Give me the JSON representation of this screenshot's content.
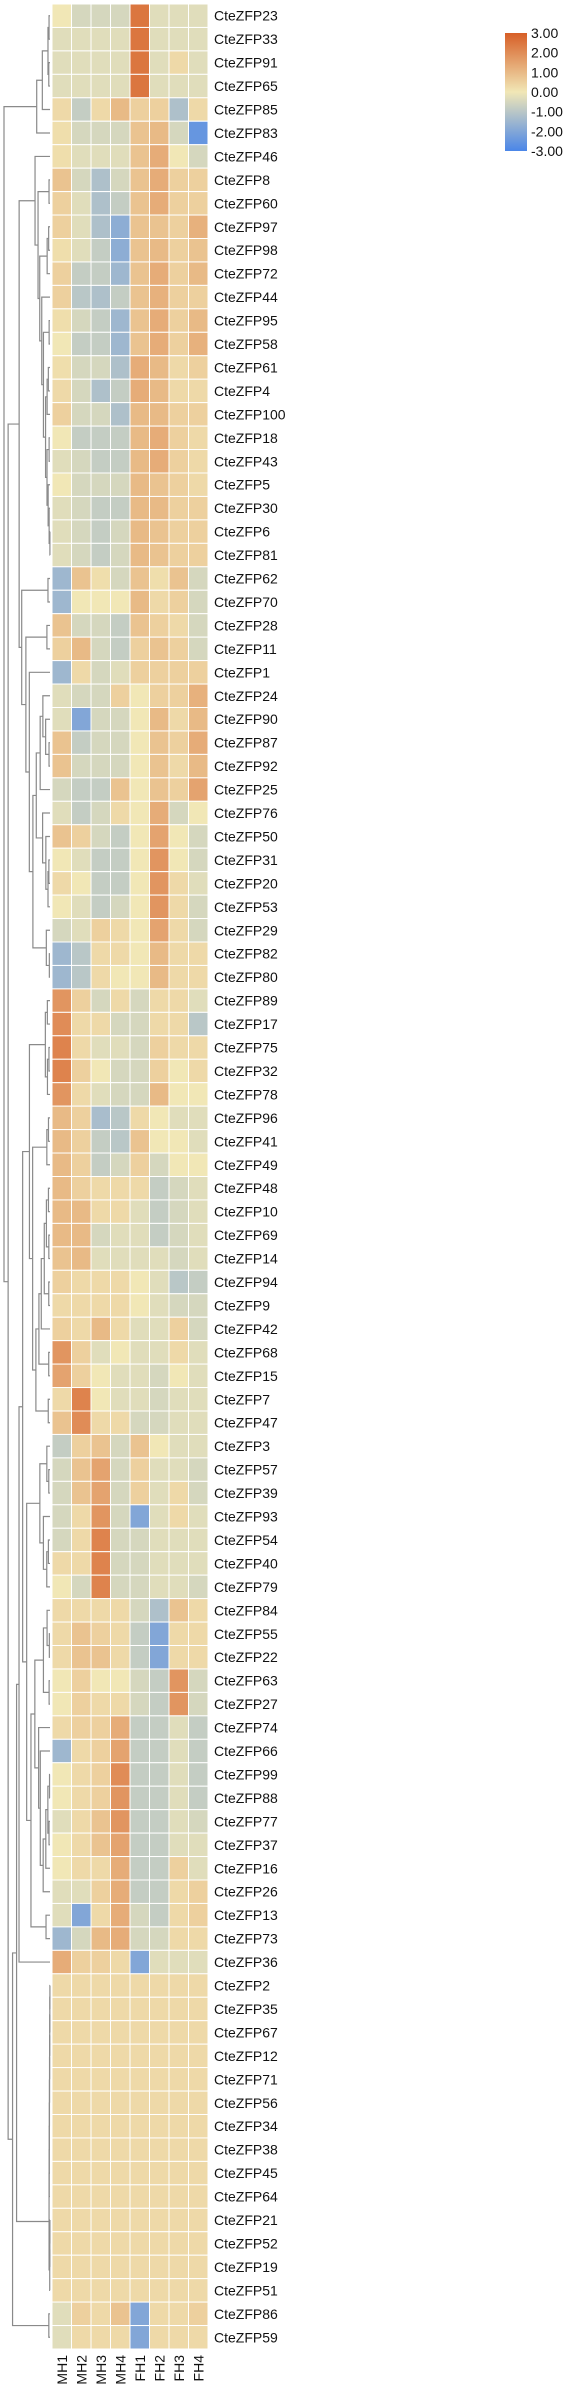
{
  "chart_data": {
    "type": "heatmap",
    "columns": [
      "MH1",
      "MH2",
      "MH3",
      "MH4",
      "FH1",
      "FH2",
      "FH3",
      "FH4"
    ],
    "rows": [
      "CteZFP23",
      "CteZFP33",
      "CteZFP91",
      "CteZFP65",
      "CteZFP85",
      "CteZFP83",
      "CteZFP46",
      "CteZFP8",
      "CteZFP60",
      "CteZFP97",
      "CteZFP98",
      "CteZFP72",
      "CteZFP44",
      "CteZFP95",
      "CteZFP58",
      "CteZFP61",
      "CteZFP4",
      "CteZFP100",
      "CteZFP18",
      "CteZFP43",
      "CteZFP5",
      "CteZFP30",
      "CteZFP6",
      "CteZFP81",
      "CteZFP62",
      "CteZFP70",
      "CteZFP28",
      "CteZFP11",
      "CteZFP1",
      "CteZFP24",
      "CteZFP90",
      "CteZFP87",
      "CteZFP92",
      "CteZFP25",
      "CteZFP76",
      "CteZFP50",
      "CteZFP31",
      "CteZFP20",
      "CteZFP53",
      "CteZFP29",
      "CteZFP82",
      "CteZFP80",
      "CteZFP89",
      "CteZFP17",
      "CteZFP75",
      "CteZFP32",
      "CteZFP78",
      "CteZFP96",
      "CteZFP41",
      "CteZFP49",
      "CteZFP48",
      "CteZFP10",
      "CteZFP69",
      "CteZFP14",
      "CteZFP94",
      "CteZFP9",
      "CteZFP42",
      "CteZFP68",
      "CteZFP15",
      "CteZFP7",
      "CteZFP47",
      "CteZFP3",
      "CteZFP57",
      "CteZFP39",
      "CteZFP93",
      "CteZFP54",
      "CteZFP40",
      "CteZFP79",
      "CteZFP84",
      "CteZFP55",
      "CteZFP22",
      "CteZFP63",
      "CteZFP27",
      "CteZFP74",
      "CteZFP66",
      "CteZFP99",
      "CteZFP88",
      "CteZFP77",
      "CteZFP37",
      "CteZFP16",
      "CteZFP26",
      "CteZFP13",
      "CteZFP73",
      "CteZFP36",
      "CteZFP2",
      "CteZFP35",
      "CteZFP67",
      "CteZFP12",
      "CteZFP71",
      "CteZFP56",
      "CteZFP34",
      "CteZFP38",
      "CteZFP45",
      "CteZFP64",
      "CteZFP21",
      "CteZFP52",
      "CteZFP19",
      "CteZFP51",
      "CteZFP86",
      "CteZFP59"
    ],
    "values": [
      [
        0,
        -0.5,
        -0.5,
        -0.5,
        2.5,
        -0.3,
        -0.3,
        -0.3
      ],
      [
        -0.3,
        -0.3,
        -0.3,
        -0.3,
        2.5,
        -0.3,
        -0.3,
        -0.3
      ],
      [
        -0.3,
        -0.3,
        -0.3,
        -0.3,
        2.5,
        -0.3,
        0.3,
        -0.3
      ],
      [
        -0.3,
        -0.3,
        -0.3,
        -0.3,
        2.5,
        -0.3,
        -0.3,
        -0.3
      ],
      [
        0.3,
        -0.8,
        0.3,
        1.0,
        0.5,
        0.5,
        -1.2,
        0.3
      ],
      [
        0.2,
        -0.5,
        -0.5,
        -0.5,
        0.8,
        1.0,
        -0.5,
        -2.5
      ],
      [
        0.2,
        -0.3,
        -0.3,
        -0.3,
        0.8,
        1.3,
        0,
        -0.5
      ],
      [
        0.8,
        -0.5,
        -1.2,
        -0.5,
        0.8,
        1.3,
        0.5,
        0.5
      ],
      [
        0.5,
        -0.3,
        -1.2,
        -0.8,
        0.8,
        1.3,
        0.5,
        0.5
      ],
      [
        0.5,
        -0.3,
        -1.2,
        -1.8,
        0.8,
        0.8,
        0.5,
        1.2
      ],
      [
        0.2,
        -0.3,
        -0.8,
        -1.8,
        0.8,
        1.0,
        0.5,
        0.8
      ],
      [
        0.5,
        -0.8,
        -0.8,
        -1.5,
        0.8,
        1.3,
        0.5,
        1.0
      ],
      [
        0.5,
        -1.0,
        -1.2,
        -0.8,
        0.8,
        1.2,
        0.5,
        0.5
      ],
      [
        0.2,
        -0.5,
        -0.8,
        -1.5,
        0.8,
        1.3,
        0.5,
        1.0
      ],
      [
        0,
        -0.8,
        -0.8,
        -1.5,
        0.8,
        1.3,
        0.5,
        1.2
      ],
      [
        0.2,
        -0.5,
        -0.5,
        -1.2,
        1.3,
        1.0,
        0.3,
        0.5
      ],
      [
        0.3,
        -0.5,
        -1.2,
        -0.8,
        1.3,
        1.0,
        0.3,
        0.3
      ],
      [
        0.5,
        -0.5,
        -0.5,
        -1.2,
        1.0,
        1.0,
        0.5,
        0.5
      ],
      [
        0,
        -0.8,
        -0.8,
        -0.8,
        1.0,
        1.3,
        0.5,
        0.3
      ],
      [
        -0.3,
        -0.5,
        -0.8,
        -0.8,
        1.0,
        1.3,
        0.5,
        0.3
      ],
      [
        0,
        -0.5,
        -0.5,
        -0.5,
        1.0,
        0.8,
        0.5,
        0.3
      ],
      [
        -0.3,
        -0.5,
        -0.8,
        -0.8,
        1.0,
        1.0,
        0.5,
        0.5
      ],
      [
        -0.3,
        -0.5,
        -0.8,
        -0.5,
        1.0,
        0.8,
        0.5,
        0.5
      ],
      [
        -0.3,
        -0.5,
        -0.8,
        -0.5,
        1.0,
        0.8,
        0.5,
        0.5
      ],
      [
        -1.5,
        0.8,
        0.2,
        -0.5,
        0.8,
        0.2,
        0.8,
        -0.5
      ],
      [
        -1.5,
        0,
        0,
        0,
        1.0,
        0.3,
        0.5,
        -0.5
      ],
      [
        0.8,
        -0.5,
        -0.5,
        -0.8,
        0.8,
        0.5,
        0.3,
        -0.5
      ],
      [
        0.5,
        1.0,
        -0.5,
        -0.8,
        0.5,
        0.8,
        0.5,
        -0.5
      ],
      [
        -1.5,
        0.3,
        -0.5,
        -0.3,
        0.5,
        0.5,
        0.5,
        0.5
      ],
      [
        -0.3,
        -0.5,
        -0.5,
        0.5,
        0,
        0.5,
        0.5,
        1.2
      ],
      [
        -0.3,
        -2.0,
        -0.5,
        -0.5,
        0,
        1.0,
        0.3,
        1.0
      ],
      [
        0.8,
        -0.8,
        -0.5,
        -0.5,
        0,
        0.8,
        0.5,
        1.3
      ],
      [
        0.8,
        -0.5,
        -0.5,
        -0.5,
        0,
        0.8,
        0.3,
        1.0
      ],
      [
        -0.5,
        -0.8,
        -0.8,
        0.8,
        0,
        0.8,
        0.5,
        1.5
      ],
      [
        -0.3,
        -0.8,
        -0.5,
        0.3,
        0,
        1.3,
        -0.5,
        0
      ],
      [
        0.8,
        0.5,
        -0.5,
        -0.8,
        0,
        1.5,
        0,
        -0.5
      ],
      [
        0,
        -0.3,
        -0.8,
        -0.8,
        0,
        1.8,
        0,
        -0.5
      ],
      [
        0.3,
        0,
        -0.8,
        -0.8,
        0,
        1.8,
        0.3,
        -0.3
      ],
      [
        0,
        -0.3,
        -0.8,
        -0.5,
        0,
        1.8,
        0.3,
        -0.5
      ],
      [
        -0.5,
        -0.3,
        0.5,
        0.3,
        0,
        1.5,
        0.3,
        -0.5
      ],
      [
        -1.5,
        -1.0,
        0.3,
        0.3,
        0,
        1.0,
        0.3,
        0.3
      ],
      [
        -1.5,
        -1.0,
        0.3,
        0,
        0,
        1.0,
        0.3,
        0.3
      ],
      [
        1.8,
        0.5,
        -0.5,
        0.3,
        -0.5,
        0.3,
        0.3,
        -0.3
      ],
      [
        2.0,
        0.3,
        0.3,
        -0.5,
        -0.5,
        0.3,
        0.3,
        -1.0
      ],
      [
        2.2,
        0.3,
        -0.3,
        -0.3,
        -0.5,
        0.5,
        0.3,
        0.3
      ],
      [
        2.2,
        0.5,
        0,
        -0.5,
        -0.5,
        0.5,
        0,
        0.3
      ],
      [
        1.8,
        0.3,
        -0.3,
        -0.5,
        -0.5,
        1.0,
        0,
        0
      ],
      [
        1.0,
        0.5,
        -1.3,
        -1.0,
        0.3,
        0,
        -0.3,
        -0.3
      ],
      [
        1.0,
        0.5,
        -0.8,
        -1.0,
        0.8,
        0,
        0,
        -0.3
      ],
      [
        1.0,
        0.5,
        -0.8,
        -0.5,
        0.5,
        -0.5,
        0,
        0
      ],
      [
        1.0,
        0.5,
        0.3,
        0.3,
        0.3,
        -0.8,
        -0.5,
        -0.3
      ],
      [
        1.0,
        1.0,
        0.3,
        0.3,
        -0.3,
        -0.8,
        -0.5,
        -0.3
      ],
      [
        1.0,
        1.0,
        -0.5,
        -0.3,
        -0.3,
        -0.8,
        -0.5,
        -0.3
      ],
      [
        0.8,
        1.0,
        -0.3,
        -0.3,
        -0.3,
        -0.3,
        -0.5,
        -0.3
      ],
      [
        0.5,
        0.3,
        0.3,
        0.3,
        0,
        -0.3,
        -1.0,
        -0.8
      ],
      [
        0.3,
        0.3,
        0.3,
        0.3,
        0,
        -0.3,
        -0.5,
        -0.5
      ],
      [
        0.5,
        0.3,
        1.0,
        0.3,
        -0.3,
        -0.3,
        0.5,
        -0.5
      ],
      [
        1.8,
        0.5,
        -0.3,
        0,
        -0.3,
        -0.3,
        0.3,
        -0.3
      ],
      [
        1.5,
        0.5,
        0,
        -0.3,
        -0.3,
        -0.5,
        0,
        -0.3
      ],
      [
        0.3,
        2.2,
        0,
        -0.3,
        -0.3,
        -0.5,
        -0.3,
        -0.3
      ],
      [
        0.8,
        2.0,
        0.3,
        0.3,
        -0.5,
        -0.5,
        -0.3,
        -0.3
      ],
      [
        -0.8,
        0.5,
        0.8,
        -0.5,
        0.8,
        0,
        -0.3,
        -0.3
      ],
      [
        -0.5,
        0.8,
        1.5,
        -0.5,
        0.5,
        -0.3,
        -0.3,
        -0.5
      ],
      [
        -0.5,
        0.8,
        1.5,
        -0.5,
        0.5,
        -0.3,
        0.3,
        -0.5
      ],
      [
        -0.5,
        0.3,
        1.8,
        -0.5,
        -2.0,
        -0.3,
        0.3,
        -0.3
      ],
      [
        -0.5,
        0.3,
        2.2,
        -0.5,
        -0.5,
        -0.3,
        -0.3,
        -0.3
      ],
      [
        0.3,
        0.3,
        2.2,
        -0.5,
        -0.5,
        -0.3,
        -0.3,
        -0.3
      ],
      [
        0,
        -0.5,
        2.2,
        -0.5,
        -0.5,
        -0.3,
        -0.3,
        -0.5
      ],
      [
        0.3,
        0.3,
        0.3,
        0.3,
        -0.5,
        -1.2,
        0.8,
        0.3
      ],
      [
        0.3,
        0.8,
        0.5,
        0.3,
        -0.8,
        -2.0,
        0.3,
        0.3
      ],
      [
        0.3,
        0.8,
        0.8,
        0.3,
        -0.8,
        -2.0,
        0.3,
        0.3
      ],
      [
        0,
        0.5,
        0,
        0,
        -0.5,
        -0.8,
        1.8,
        -0.5
      ],
      [
        0,
        0.5,
        0.3,
        0.3,
        -0.5,
        -0.8,
        1.8,
        -0.5
      ],
      [
        0.3,
        0.5,
        0.5,
        1.3,
        -0.8,
        -0.8,
        -0.3,
        -0.8
      ],
      [
        -1.5,
        0.3,
        0.5,
        1.5,
        -0.8,
        -0.8,
        -0.3,
        -0.8
      ],
      [
        0,
        0.3,
        0.5,
        2.0,
        -0.8,
        -0.8,
        -0.3,
        -0.8
      ],
      [
        0,
        0.3,
        0.5,
        1.8,
        -0.8,
        -0.8,
        -0.3,
        -0.8
      ],
      [
        -0.3,
        0.3,
        0.8,
        1.8,
        -0.8,
        -0.8,
        -0.3,
        -0.5
      ],
      [
        0,
        0.3,
        0.8,
        1.5,
        -0.8,
        -0.8,
        -0.3,
        -0.3
      ],
      [
        0,
        0.3,
        0.3,
        1.3,
        -0.8,
        -0.8,
        0.5,
        -0.3
      ],
      [
        -0.3,
        -0.3,
        0.5,
        1.3,
        -0.8,
        -0.8,
        0.3,
        0.5
      ],
      [
        -0.3,
        -2.0,
        0.3,
        1.3,
        -0.5,
        -0.8,
        0.3,
        0.5
      ],
      [
        -1.5,
        -0.5,
        1.0,
        1.3,
        -0.5,
        -0.5,
        0.3,
        0.3
      ],
      [
        1.3,
        0.5,
        0.5,
        0.3,
        -2.0,
        -0.3,
        -0.3,
        -0.3
      ],
      [
        0.3,
        0.3,
        0.3,
        0.3,
        0.3,
        0.3,
        0.3,
        0.3
      ],
      [
        0.3,
        0.3,
        0.3,
        0.3,
        0.3,
        0.3,
        0.3,
        0.3
      ],
      [
        0.3,
        0.3,
        0.3,
        0.3,
        0.3,
        0.3,
        0.3,
        0.3
      ],
      [
        0.3,
        0.3,
        0.3,
        0.3,
        0.3,
        0.3,
        0.3,
        0.3
      ],
      [
        0.3,
        0.3,
        0.3,
        0.3,
        0.3,
        0.3,
        0.3,
        0.3
      ],
      [
        0.3,
        0.3,
        0.3,
        0.3,
        0.3,
        0.3,
        0.3,
        0.3
      ],
      [
        0.3,
        0.3,
        0.3,
        0.3,
        0.3,
        0.3,
        0.3,
        0.3
      ],
      [
        0.3,
        0.3,
        0.3,
        0.3,
        0.3,
        0.3,
        0.3,
        0.3
      ],
      [
        0.3,
        0.3,
        0.3,
        0.3,
        0.3,
        0.3,
        0.3,
        0.3
      ],
      [
        0.3,
        0.3,
        0.3,
        0.3,
        0.3,
        0.3,
        0.3,
        0.3
      ],
      [
        0.3,
        0.3,
        0.3,
        0.3,
        0.3,
        0.3,
        0.3,
        0.3
      ],
      [
        0.3,
        0.3,
        0.3,
        0.3,
        0.3,
        0.3,
        0.3,
        0.3
      ],
      [
        0.3,
        0.3,
        0.3,
        0.3,
        0.3,
        0.3,
        0.3,
        0.3
      ],
      [
        0.3,
        0.3,
        0.3,
        0.3,
        0.3,
        0.3,
        0.3,
        0.3
      ],
      [
        -0.3,
        0.5,
        0.3,
        0.8,
        -2.0,
        0.3,
        0.3,
        0.5
      ],
      [
        -0.3,
        0.3,
        0.3,
        0.3,
        -2.0,
        0.3,
        0.3,
        0.3
      ]
    ],
    "colorbar": {
      "ticks": [
        "3.00",
        "2.00",
        "1.00",
        "0.00",
        "-1.00",
        "-2.00",
        "-3.00"
      ],
      "range": [
        -3,
        3
      ],
      "colors": {
        "low": "#4a86e8",
        "mid": "#f1e7b6",
        "high": "#d75f27"
      }
    },
    "dendrogram": "left row clustering tree",
    "grid": true,
    "legend": "top-right colorbar"
  }
}
